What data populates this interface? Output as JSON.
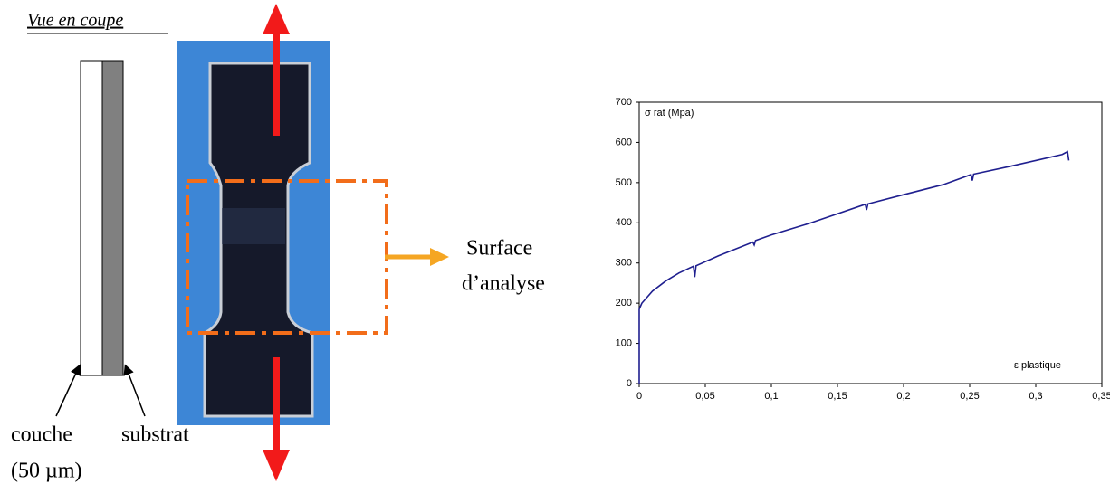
{
  "diagram": {
    "view_label": "Vue en coupe",
    "layer_label": "couche",
    "thickness_label": "(50 µm)",
    "substrate_label": "substrat",
    "surface_label_1": "Surface",
    "surface_label_2": "d’analyse"
  },
  "chart_data": {
    "type": "line",
    "y_label": "σ rat (Mpa)",
    "x_label": "ε plastique",
    "series": [
      {
        "color": "#1f1f8f",
        "x": [
          0,
          0,
          0.002,
          0.01,
          0.02,
          0.03,
          0.041,
          0.042,
          0.043,
          0.06,
          0.086,
          0.087,
          0.088,
          0.1,
          0.13,
          0.171,
          0.172,
          0.173,
          0.2,
          0.23,
          0.251,
          0.252,
          0.253,
          0.28,
          0.3,
          0.32,
          0.324,
          0.325
        ],
        "values": [
          0,
          185,
          200,
          230,
          255,
          275,
          292,
          265,
          293,
          318,
          352,
          345,
          356,
          370,
          400,
          446,
          432,
          447,
          470,
          495,
          520,
          505,
          521,
          540,
          555,
          570,
          577,
          555
        ]
      }
    ],
    "xlim": [
      0,
      0.35
    ],
    "ylim": [
      0,
      700
    ],
    "xticks": [
      0,
      {
        "value": 0.05,
        "label": "0,05"
      },
      {
        "value": 0.1,
        "label": "0,1"
      },
      {
        "value": 0.15,
        "label": "0,15"
      },
      {
        "value": 0.2,
        "label": "0,2"
      },
      {
        "value": 0.25,
        "label": "0,25"
      },
      {
        "value": 0.3,
        "label": "0,3"
      },
      {
        "value": 0.35,
        "label": "0,35"
      }
    ],
    "yticks": [
      0,
      100,
      200,
      300,
      400,
      500,
      600,
      700
    ]
  }
}
